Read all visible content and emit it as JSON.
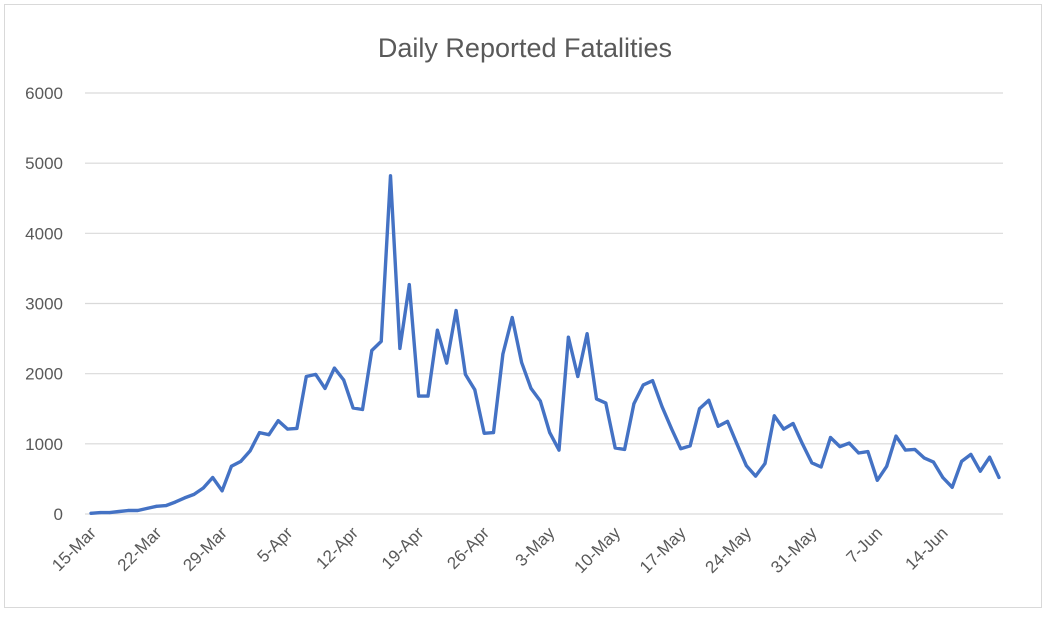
{
  "chart_data": {
    "type": "line",
    "title": "Daily Reported Fatalities",
    "xlabel": "",
    "ylabel": "",
    "ylim": [
      0,
      6000
    ],
    "y_ticks": [
      0,
      1000,
      2000,
      3000,
      4000,
      5000,
      6000
    ],
    "x_tick_labels": [
      "15-Mar",
      "22-Mar",
      "29-Mar",
      "5-Apr",
      "12-Apr",
      "19-Apr",
      "26-Apr",
      "3-May",
      "10-May",
      "17-May",
      "24-May",
      "31-May",
      "7-Jun",
      "14-Jun"
    ],
    "x_tick_interval_days": 7,
    "grid": true,
    "legend": "none",
    "line_color": "#4472c4",
    "series": [
      {
        "values": [
          10,
          20,
          20,
          35,
          50,
          50,
          80,
          110,
          120,
          170,
          230,
          280,
          370,
          520,
          330,
          680,
          750,
          900,
          1160,
          1130,
          1330,
          1210,
          1220,
          1960,
          1990,
          1790,
          2080,
          1910,
          1510,
          1490,
          2330,
          2460,
          4820,
          2360,
          3270,
          1680,
          1680,
          2620,
          2150,
          2900,
          1990,
          1770,
          1150,
          1160,
          2280,
          2800,
          2160,
          1790,
          1610,
          1160,
          910,
          2520,
          1960,
          2570,
          1640,
          1580,
          940,
          920,
          1570,
          1840,
          1900,
          1530,
          1220,
          930,
          970,
          1500,
          1620,
          1250,
          1320,
          1000,
          690,
          540,
          720,
          1400,
          1210,
          1290,
          1000,
          730,
          670,
          1090,
          960,
          1010,
          870,
          890,
          480,
          680,
          1110,
          910,
          920,
          800,
          740,
          520,
          380,
          750,
          850,
          610,
          810,
          520
        ]
      }
    ]
  }
}
